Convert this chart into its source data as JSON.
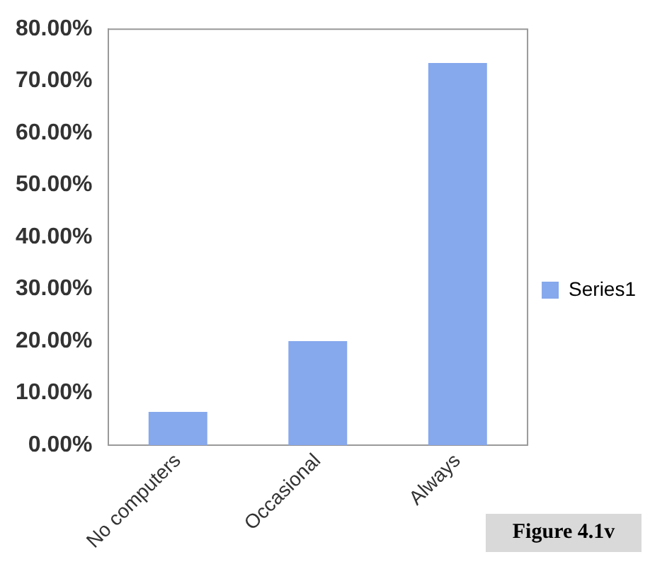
{
  "chart_data": {
    "type": "bar",
    "categories": [
      "No computers",
      "Occasional",
      "Always"
    ],
    "series": [
      {
        "name": "Series1",
        "color": "#86a8ec",
        "values": [
          6.4,
          20,
          73.5
        ]
      }
    ],
    "ylim": [
      0,
      80
    ],
    "yticks": [
      {
        "value": 0,
        "label": "0.00%"
      },
      {
        "value": 10,
        "label": "10.00%"
      },
      {
        "value": 20,
        "label": "20.00%"
      },
      {
        "value": 30,
        "label": "30.00%"
      },
      {
        "value": 40,
        "label": "40.00%"
      },
      {
        "value": 50,
        "label": "50.00%"
      },
      {
        "value": 60,
        "label": "60.00%"
      },
      {
        "value": 70,
        "label": "70.00%"
      },
      {
        "value": 80,
        "label": "80.00%"
      }
    ],
    "grid": false,
    "legend": "right",
    "annotations": [
      "Figure 4.1v"
    ]
  }
}
